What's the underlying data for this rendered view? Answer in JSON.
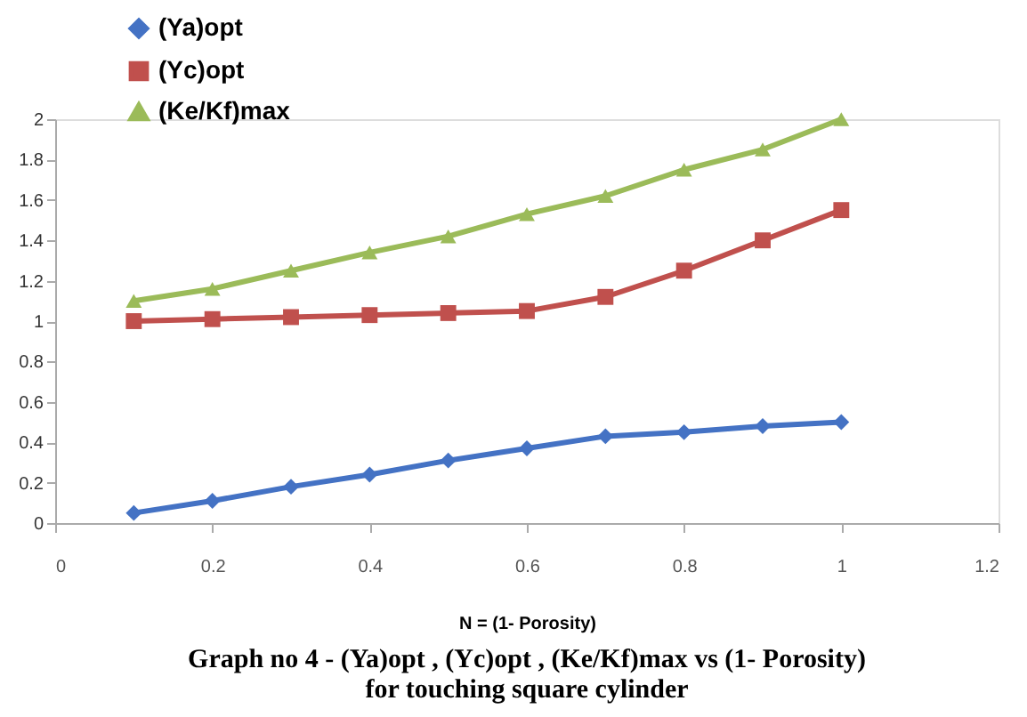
{
  "chart_data": {
    "type": "line",
    "title": [
      "Graph no 4 - (Ya)opt , (Yc)opt , (Ke/Kf)max vs (1- Porosity)",
      "for touching square cylinder"
    ],
    "xlabel": "N = (1- Porosity)",
    "x": [
      0.1,
      0.2,
      0.3,
      0.4,
      0.5,
      0.6,
      0.7,
      0.8,
      0.9,
      1.0
    ],
    "series": [
      {
        "name": "(Ya)opt",
        "color": "#4472c4",
        "marker": "diamond",
        "values": [
          0.05,
          0.11,
          0.18,
          0.24,
          0.31,
          0.37,
          0.43,
          0.45,
          0.48,
          0.5
        ]
      },
      {
        "name": "(Yc)opt",
        "color": "#c0504d",
        "marker": "square",
        "values": [
          1.0,
          1.01,
          1.02,
          1.03,
          1.04,
          1.05,
          1.12,
          1.25,
          1.4,
          1.55
        ]
      },
      {
        "name": "(Ke/Kf)max",
        "color": "#9bbb59",
        "marker": "triangle",
        "values": [
          1.1,
          1.16,
          1.25,
          1.34,
          1.42,
          1.53,
          1.62,
          1.75,
          1.85,
          2.0
        ]
      }
    ],
    "xlim": [
      0,
      1.2
    ],
    "xticks": [
      0,
      0.2,
      0.4,
      0.6,
      0.8,
      1,
      1.2
    ],
    "ylim": [
      0,
      2
    ],
    "yticks": [
      0,
      0.2,
      0.4,
      0.6,
      0.8,
      1,
      1.2,
      1.4,
      1.6,
      1.8,
      2
    ],
    "grid": false,
    "legend": "top left",
    "line_style": "solid"
  }
}
